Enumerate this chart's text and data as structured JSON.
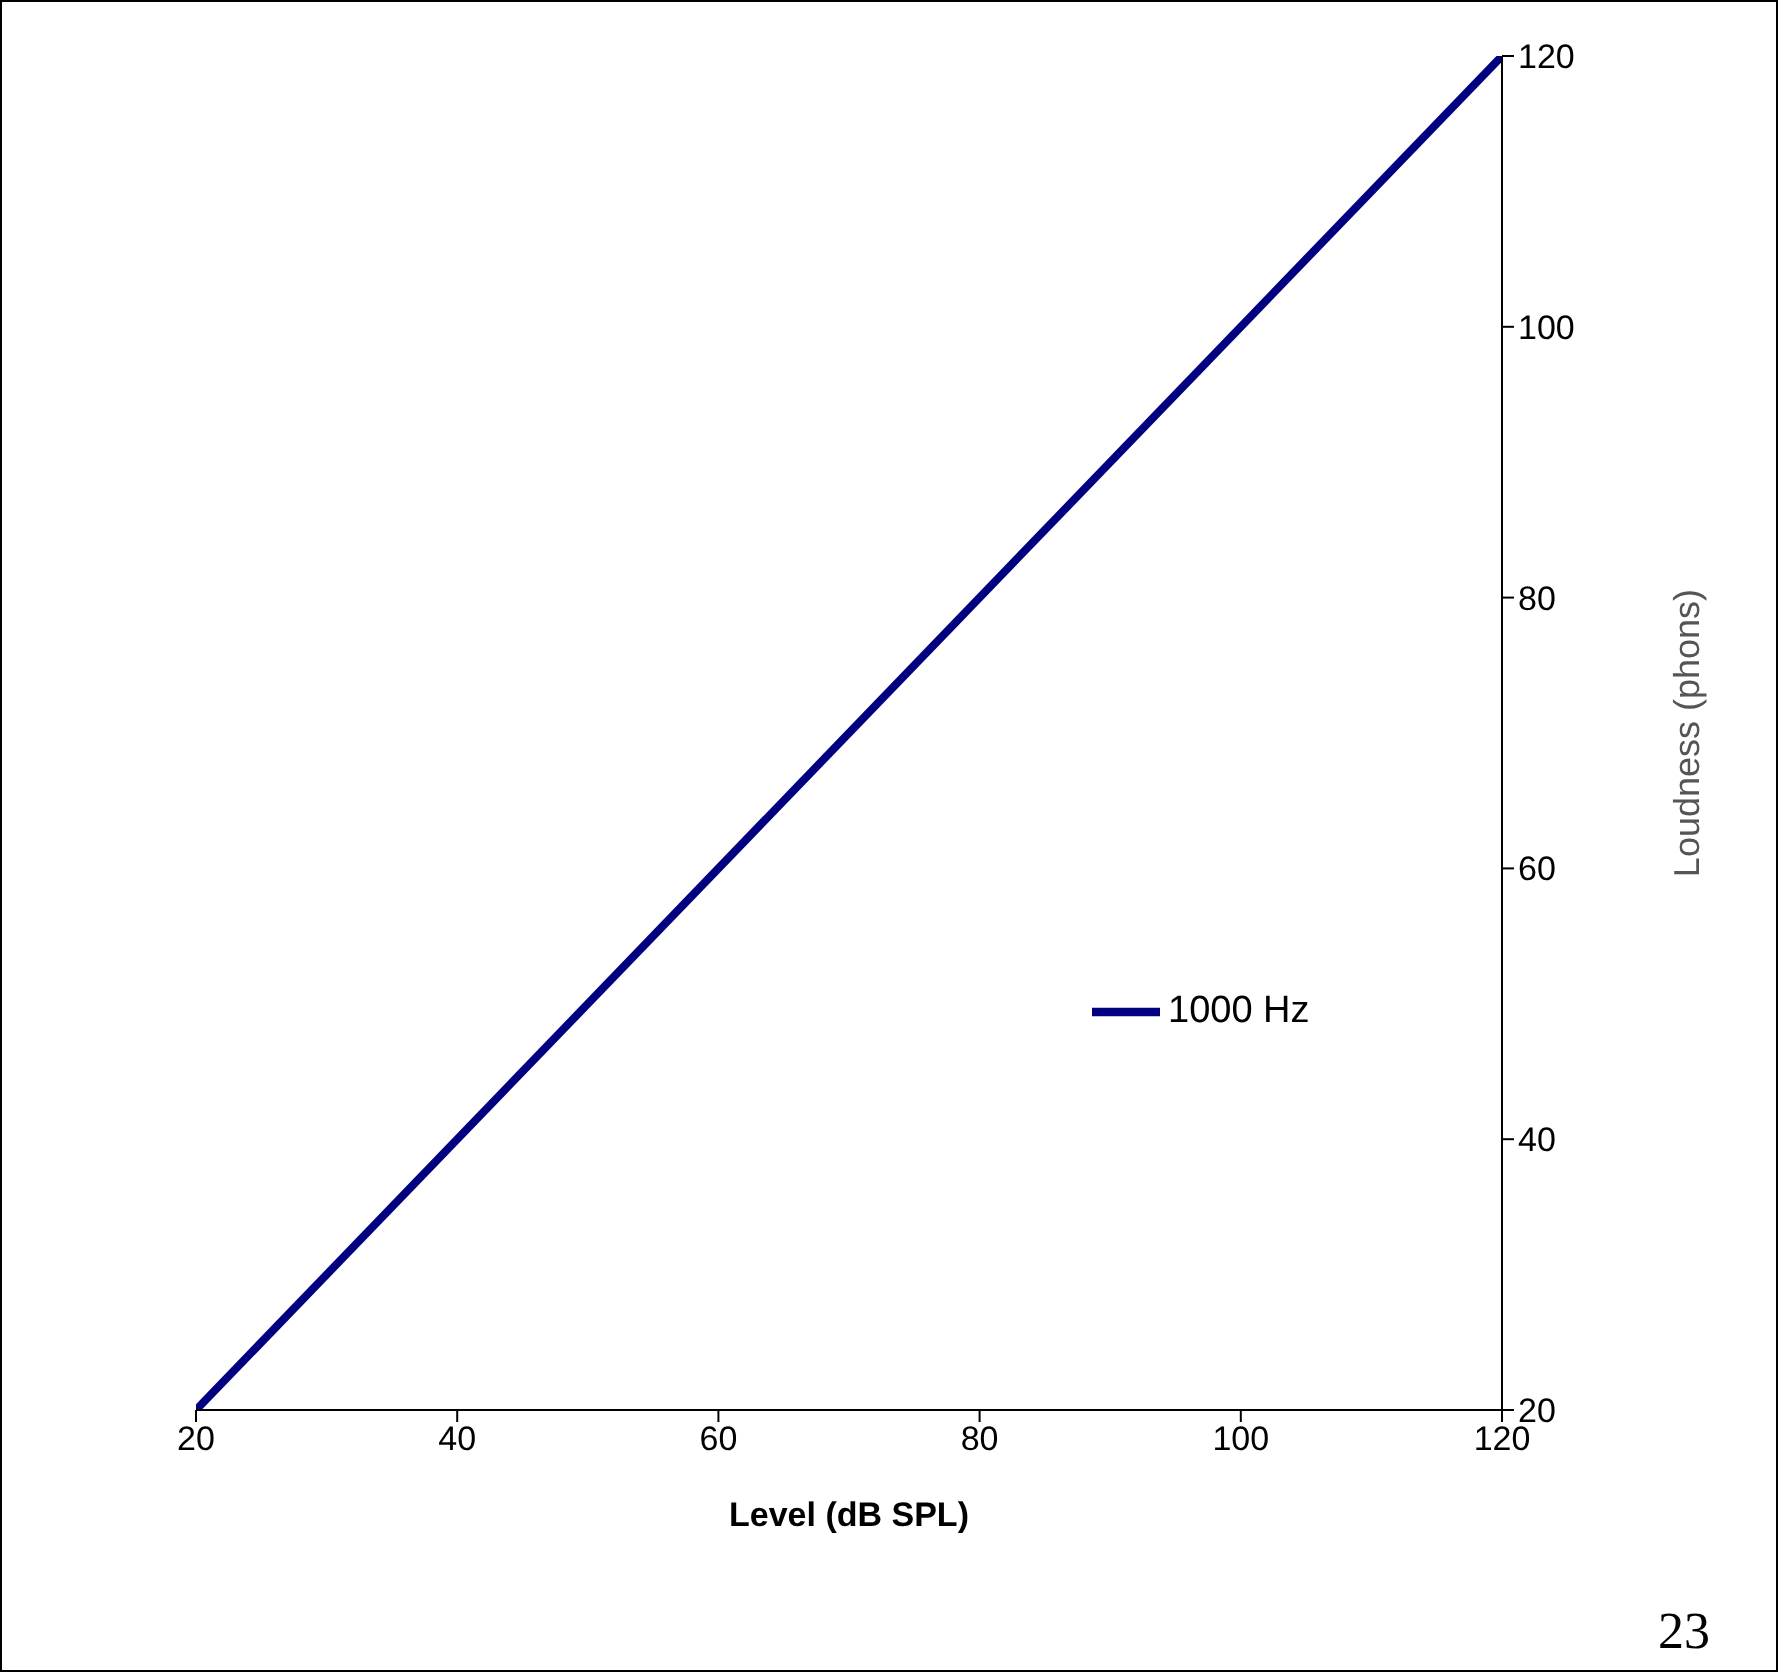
{
  "chart_data": {
    "type": "line",
    "xlabel": "Level (dB SPL)",
    "ylabel": "Loudness (phons)",
    "x": [
      20,
      120
    ],
    "series": [
      {
        "name": "1000 Hz",
        "color": "#000080",
        "values": [
          20,
          120
        ]
      }
    ],
    "xlim": [
      20,
      120
    ],
    "xticks": [
      20,
      40,
      60,
      80,
      100,
      120
    ],
    "ylim": [
      20,
      120
    ],
    "yticks": [
      20,
      40,
      60,
      80,
      100,
      120
    ],
    "legend": "right",
    "annotations": [
      "23"
    ]
  }
}
